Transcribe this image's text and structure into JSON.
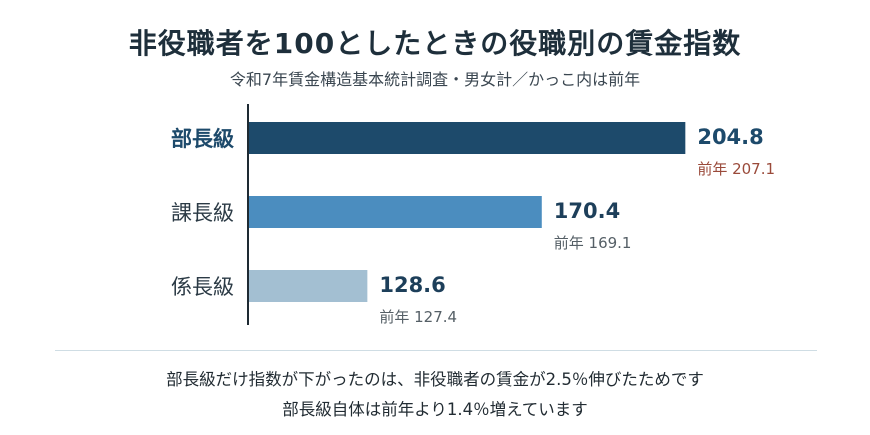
{
  "header": {
    "title": "非役職者を100としたときの役職別の賃金指数",
    "subtitle": "令和7年賃金構造基本統計調査・男女計／かっこ内は前年"
  },
  "chart_data": {
    "type": "bar",
    "orientation": "horizontal",
    "categories": [
      "部長級",
      "課長級",
      "係長級"
    ],
    "values": [
      204.8,
      170.4,
      128.6
    ],
    "value_labels": [
      "204.8",
      "170.4",
      "128.6"
    ],
    "previous_labels": [
      "前年 207.1",
      "前年 169.1",
      "前年 127.4"
    ],
    "previous_values": [
      207.1,
      169.1,
      127.4
    ],
    "bar_colors": [
      "#1d4a6b",
      "#4b8dbf",
      "#a3bfd2"
    ],
    "value_colors": [
      "#1d4a6b",
      "#1d3f5a",
      "#1d3f5a"
    ],
    "previous_colors": [
      "#9a4a3a",
      "#555f66",
      "#555f66"
    ],
    "category_colors": [
      "#1d4a6b",
      "#2b3a45",
      "#2b3a45"
    ],
    "highlight_category": "部長級",
    "xlim": [
      100,
      210
    ],
    "grid": false,
    "legend": "none"
  },
  "footnote": {
    "line1": "部長級だけ指数が下がったのは、非役職者の賃金が2.5％伸びたためです",
    "line2": "部長級自体は前年より1.4％増えています"
  }
}
